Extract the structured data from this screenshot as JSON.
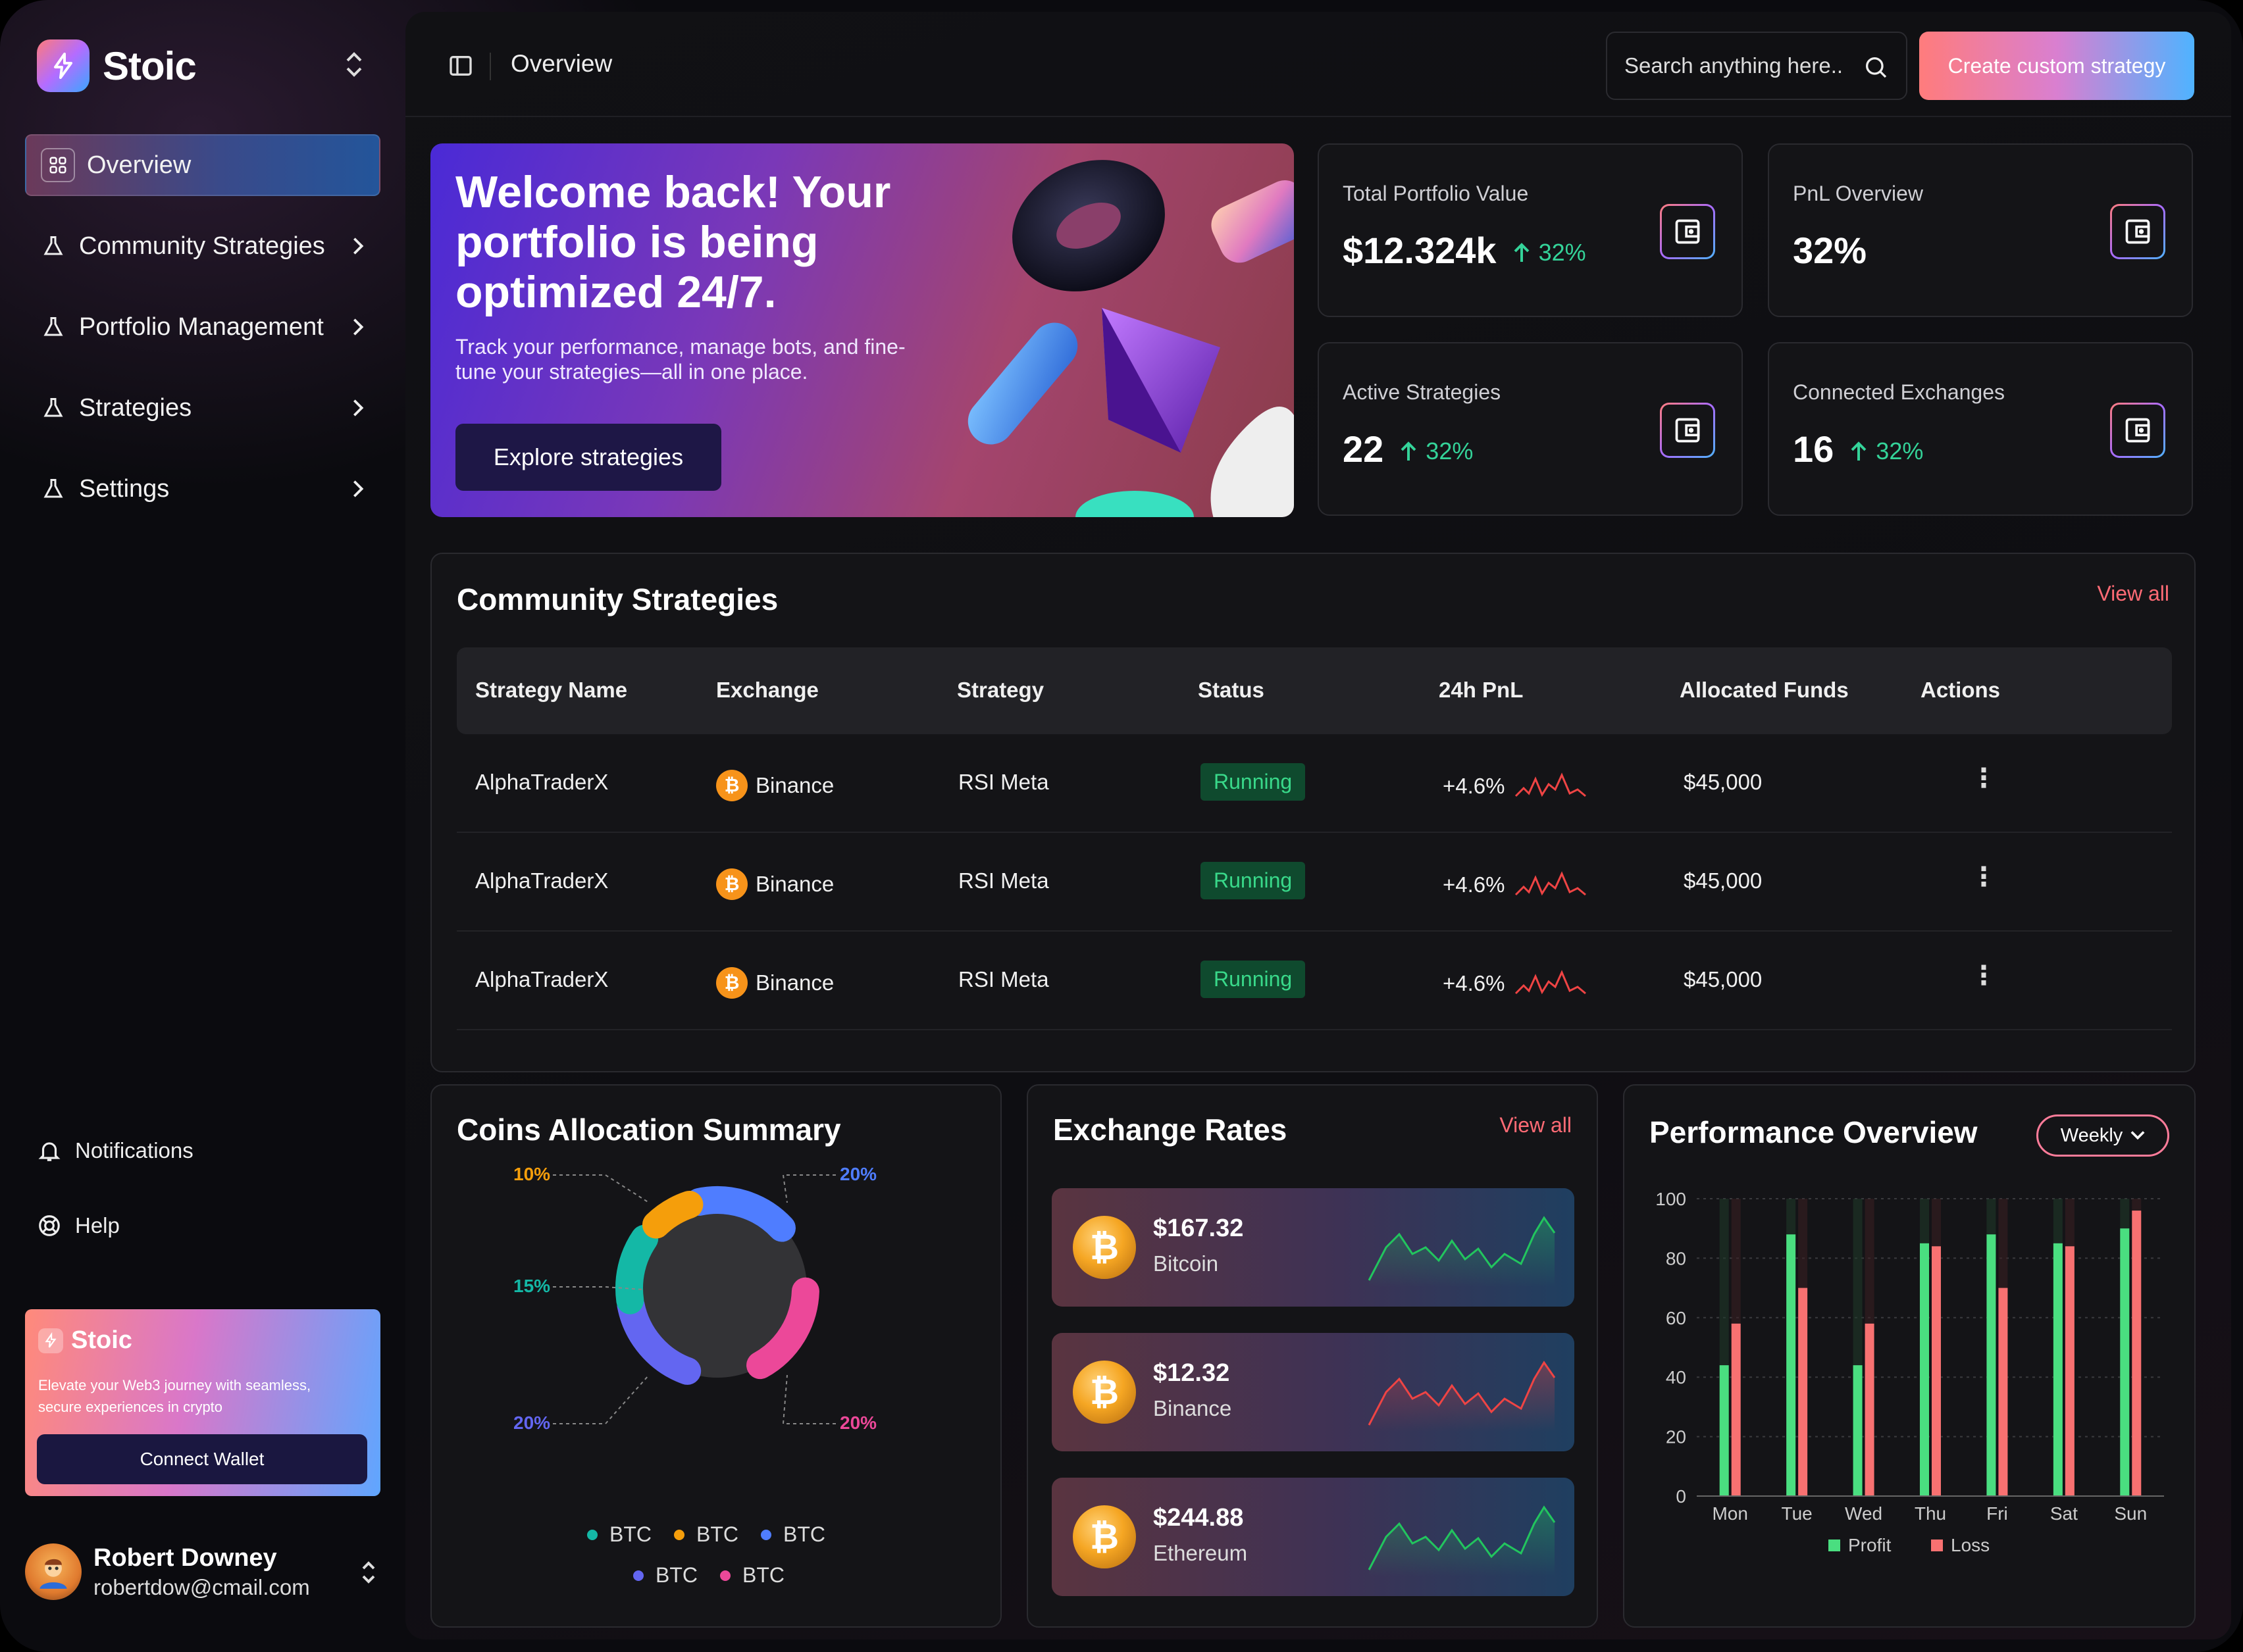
{
  "app": {
    "name": "Stoic"
  },
  "sidebar": {
    "items": [
      {
        "label": "Overview",
        "active": true
      },
      {
        "label": "Community Strategies"
      },
      {
        "label": "Portfolio Management"
      },
      {
        "label": "Strategies"
      },
      {
        "label": "Settings"
      }
    ],
    "utility": [
      {
        "label": "Notifications",
        "icon": "bell-icon"
      },
      {
        "label": "Help",
        "icon": "help-icon"
      }
    ],
    "promo": {
      "title": "Stoic",
      "text": "Elevate your Web3 journey with seamless, secure experiences in crypto",
      "button": "Connect Wallet"
    },
    "user": {
      "name": "Robert Downey",
      "email": "robertdow@cmail.com"
    }
  },
  "topbar": {
    "title": "Overview",
    "search_placeholder": "Search anything here..",
    "cta": "Create custom strategy"
  },
  "hero": {
    "title": "Welcome back! Your portfolio is being optimized 24/7.",
    "text": "Track your performance, manage bots, and fine-tune your strategies—all in one place.",
    "button": "Explore strategies"
  },
  "stats": [
    {
      "label": "Total Portfolio Value",
      "value": "$12.324k",
      "change": "32%"
    },
    {
      "label": "PnL Overview",
      "value": "32%",
      "change": ""
    },
    {
      "label": "Active Strategies",
      "value": "22",
      "change": "32%"
    },
    {
      "label": "Connected Exchanges",
      "value": "16",
      "change": "32%"
    }
  ],
  "community": {
    "title": "Community Strategies",
    "view_all": "View all",
    "columns": [
      "Strategy Name",
      "Exchange",
      "Strategy",
      "Status",
      "24h PnL",
      "Allocated Funds",
      "Actions"
    ],
    "rows": [
      {
        "name": "AlphaTraderX",
        "exchange": "Binance",
        "strategy": "RSI Meta",
        "status": "Running",
        "pnl": "+4.6%",
        "funds": "$45,000"
      },
      {
        "name": "AlphaTraderX",
        "exchange": "Binance",
        "strategy": "RSI Meta",
        "status": "Running",
        "pnl": "+4.6%",
        "funds": "$45,000"
      },
      {
        "name": "AlphaTraderX",
        "exchange": "Binance",
        "strategy": "RSI Meta",
        "status": "Running",
        "pnl": "+4.6%",
        "funds": "$45,000"
      }
    ]
  },
  "allocation": {
    "title": "Coins Allocation Summary",
    "segments": [
      {
        "label": "20%",
        "value": 20,
        "color": "#4f7dff"
      },
      {
        "label": "20%",
        "value": 20,
        "color": "#ec4899"
      },
      {
        "label": "20%",
        "value": 20,
        "color": "#6366f1"
      },
      {
        "label": "15%",
        "value": 15,
        "color": "#14b8a6"
      },
      {
        "label": "10%",
        "value": 10,
        "color": "#f59e0b"
      }
    ],
    "legend": [
      {
        "label": "BTC",
        "color": "#14b8a6"
      },
      {
        "label": "BTC",
        "color": "#f59e0b"
      },
      {
        "label": "BTC",
        "color": "#4f7dff"
      },
      {
        "label": "BTC",
        "color": "#6366f1"
      },
      {
        "label": "BTC",
        "color": "#ec4899"
      }
    ]
  },
  "rates": {
    "title": "Exchange Rates",
    "view_all": "View all",
    "items": [
      {
        "price": "$167.32",
        "name": "Bitcoin",
        "trend": "up"
      },
      {
        "price": "$12.32",
        "name": "Binance",
        "trend": "down"
      },
      {
        "price": "$244.88",
        "name": "Ethereum",
        "trend": "up"
      }
    ]
  },
  "chart_data": {
    "type": "bar",
    "title": "Performance Overview",
    "period": "Weekly",
    "categories": [
      "Mon",
      "Tue",
      "Wed",
      "Thu",
      "Fri",
      "Sat",
      "Sun"
    ],
    "series": [
      {
        "name": "Profit",
        "color": "#4ade80",
        "values": [
          44,
          88,
          44,
          85,
          88,
          85,
          90
        ]
      },
      {
        "name": "Loss",
        "color": "#f87171",
        "values": [
          58,
          70,
          58,
          84,
          70,
          84,
          96
        ]
      }
    ],
    "ylim": [
      0,
      100
    ],
    "yticks": [
      0,
      20,
      40,
      60,
      80,
      100
    ],
    "legend": "bottom"
  }
}
